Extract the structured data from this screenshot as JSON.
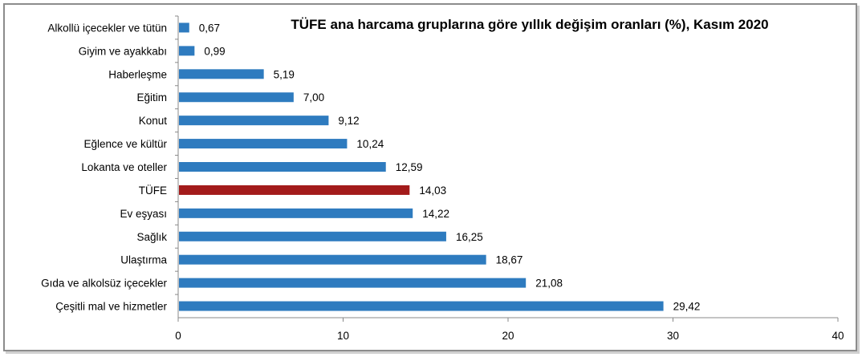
{
  "chart_data": {
    "type": "bar",
    "orientation": "horizontal",
    "title": "TÜFE ana harcama gruplarına göre yıllık değişim oranları (%), Kasım 2020",
    "categories": [
      "Alkollü içecekler ve tütün",
      "Giyim ve ayakkabı",
      "Haberleşme",
      "Eğitim",
      "Konut",
      "Eğlence ve kültür",
      "Lokanta ve oteller",
      "TÜFE",
      "Ev eşyası",
      "Sağlık",
      "Ulaştırma",
      "Gıda ve alkolsüz içecekler",
      "Çeşitli mal ve hizmetler"
    ],
    "values": [
      0.67,
      0.99,
      5.19,
      7.0,
      9.12,
      10.24,
      12.59,
      14.03,
      14.22,
      16.25,
      18.67,
      21.08,
      29.42
    ],
    "value_labels": [
      "0,67",
      "0,99",
      "5,19",
      "7,00",
      "9,12",
      "10,24",
      "12,59",
      "14,03",
      "14,22",
      "16,25",
      "18,67",
      "21,08",
      "29,42"
    ],
    "xlim": [
      0,
      40
    ],
    "xticks": [
      0,
      10,
      20,
      30,
      40
    ],
    "grid": false,
    "legend": "none",
    "bar_color": "#2e7bbf",
    "highlight_category": "TÜFE",
    "highlight_color": "#a31b1b"
  }
}
